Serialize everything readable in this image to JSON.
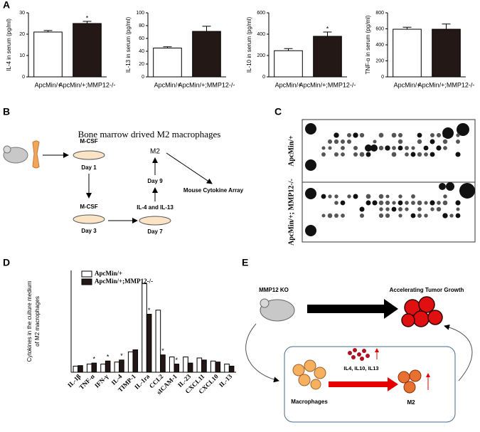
{
  "panel_labels": [
    "A",
    "B",
    "C",
    "D",
    "E"
  ],
  "chart_data": [
    {
      "type": "bar",
      "y_label": "IL-4  in serum (pg/ml)",
      "categories": [
        "ApcMin/+",
        "ApcMin/+;MMP12-/-"
      ],
      "values": [
        21,
        25
      ],
      "errors": [
        0.7,
        1
      ],
      "colors": [
        "#ffffff",
        "#231815"
      ],
      "significance": [
        null,
        "*"
      ],
      "ylim": [
        0,
        30
      ],
      "yticks": [
        0,
        10,
        20,
        30
      ]
    },
    {
      "type": "bar",
      "y_label": "IL-13 in serum (pg/ml)",
      "categories": [
        "ApcMin/+",
        "ApcMin/+;MMP12-/-"
      ],
      "values": [
        45,
        71
      ],
      "errors": [
        2,
        8
      ],
      "colors": [
        "#ffffff",
        "#231815"
      ],
      "significance": [
        null,
        null
      ],
      "ylim": [
        0,
        100
      ],
      "yticks": [
        0,
        20,
        40,
        60,
        80,
        100
      ]
    },
    {
      "type": "bar",
      "y_label": "IL-10 in serum (pg/ml)",
      "categories": [
        "ApcMin/+",
        "ApcMin/+;MMP12-/-"
      ],
      "values": [
        245,
        380
      ],
      "errors": [
        20,
        40
      ],
      "colors": [
        "#ffffff",
        "#231815"
      ],
      "significance": [
        null,
        "*"
      ],
      "ylim": [
        0,
        600
      ],
      "yticks": [
        0,
        200,
        400,
        600
      ]
    },
    {
      "type": "bar",
      "y_label": "TNF-α in serum (pg/ml)",
      "categories": [
        "ApcMin/+",
        "ApcMin/+;MMP12-/-"
      ],
      "values": [
        595,
        595
      ],
      "errors": [
        25,
        65
      ],
      "colors": [
        "#ffffff",
        "#231815"
      ],
      "significance": [
        null,
        null
      ],
      "ylim": [
        0,
        800
      ],
      "yticks": [
        0,
        200,
        400,
        600,
        800
      ]
    },
    {
      "type": "grouped_bar",
      "y_label": [
        "Cytokines in the culture medium",
        "of M2 macrophages"
      ],
      "categories": [
        "IL-1β",
        "TNF-α",
        "IFN-γ",
        "IL-4",
        "TIMP-1",
        "IL-1ra",
        "CCL2",
        "sICAM-1",
        "IL-23",
        "CXCL11",
        "CXCL10",
        "IL-13"
      ],
      "series": [
        {
          "name": "ApcMin/+",
          "color": "#ffffff",
          "values": [
            0.06,
            0.08,
            0.08,
            0.1,
            0.2,
            0.87,
            0.61,
            0.15,
            0.15,
            0.14,
            0.11,
            0.08
          ]
        },
        {
          "name": "ApcMin/+;MMP12-/-",
          "color": "#231815",
          "values": [
            0.065,
            0.09,
            0.11,
            0.12,
            0.22,
            0.57,
            0.17,
            0.08,
            0.09,
            0.12,
            0.1,
            0.06
          ]
        }
      ],
      "significance": [
        null,
        "*",
        "*",
        "*",
        null,
        "*",
        "*",
        "*",
        null,
        null,
        null,
        null
      ],
      "ylim": [
        0,
        1
      ]
    }
  ],
  "diagram_b": {
    "title": "Bone marrow drived M2 macrophages",
    "steps": [
      "M-CSF",
      "Day 1",
      "M-CSF",
      "Day 3",
      "IL-4 and IL-13",
      "Day 7",
      "Day 9",
      "M2",
      "Mouse Cytokine Array"
    ]
  },
  "blot_c": {
    "row_labels": [
      "ApcMin/+",
      "ApcMin/+; MMP12-/-"
    ]
  },
  "diagram_e": {
    "labels": [
      "MMP12 KO",
      "Accelerating Tumor Growth",
      "IL4, IL10, IL13",
      "Macrophages",
      "M2"
    ]
  }
}
